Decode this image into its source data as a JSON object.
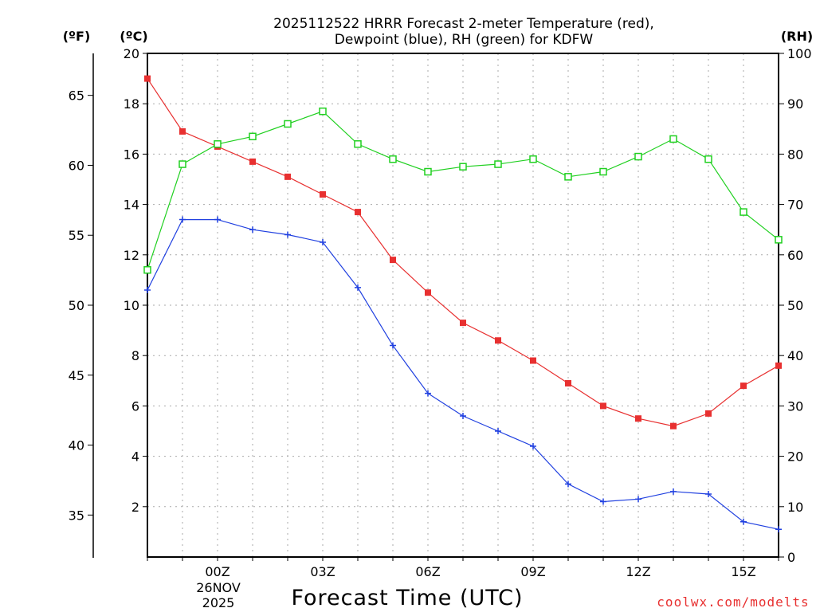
{
  "chart_data": {
    "type": "line",
    "title_line1": "2025112522 HRRR Forecast 2-meter Temperature (red),",
    "title_line2": "Dewpoint (blue), RH (green) for KDFW",
    "unit_left_f": "(ºF)",
    "unit_left_c": "(ºC)",
    "unit_right_rh": "(RH)",
    "xlabel": "Forecast Time (UTC)",
    "credit": "coolwx.com/modelts",
    "date_label_day": "26NOV",
    "date_label_year": "2025",
    "x_hours": [
      -2,
      -1,
      0,
      1,
      2,
      3,
      4,
      5,
      6,
      7,
      8,
      9,
      10,
      11,
      12,
      13,
      14,
      15,
      16
    ],
    "xlim": [
      -2,
      16
    ],
    "x_ticks": [
      {
        "hour": 0,
        "label": "00Z"
      },
      {
        "hour": 3,
        "label": "03Z"
      },
      {
        "hour": 6,
        "label": "06Z"
      },
      {
        "hour": 9,
        "label": "09Z"
      },
      {
        "hour": 12,
        "label": "12Z"
      },
      {
        "hour": 15,
        "label": "15Z"
      }
    ],
    "y_celsius": {
      "range": [
        0,
        20
      ],
      "ticks": [
        2,
        4,
        6,
        8,
        10,
        12,
        14,
        16,
        18,
        20
      ],
      "tick_labels": [
        "2",
        "4",
        "6",
        "8",
        "10",
        "12",
        "14",
        "16",
        "18",
        "20"
      ]
    },
    "y_fahrenheit": {
      "ticks": [
        35,
        40,
        45,
        50,
        55,
        60,
        65
      ],
      "tick_labels": [
        "35",
        "40",
        "45",
        "50",
        "55",
        "60",
        "65"
      ]
    },
    "y_rh": {
      "range": [
        0,
        100
      ],
      "ticks": [
        0,
        10,
        20,
        30,
        40,
        50,
        60,
        70,
        80,
        90,
        100
      ],
      "tick_labels": [
        "0",
        "10",
        "20",
        "30",
        "40",
        "50",
        "60",
        "70",
        "80",
        "90",
        "100"
      ]
    },
    "series": [
      {
        "name": "Temperature",
        "axis": "celsius",
        "color": "#e83030",
        "marker": "filled-square",
        "values": [
          19.0,
          16.9,
          16.3,
          15.7,
          15.1,
          14.4,
          13.7,
          11.8,
          10.5,
          9.3,
          8.6,
          7.8,
          6.9,
          6.0,
          5.5,
          5.2,
          5.7,
          6.8,
          7.6
        ]
      },
      {
        "name": "Dewpoint",
        "axis": "celsius",
        "color": "#2040e0",
        "marker": "plus",
        "values": [
          10.6,
          13.4,
          13.4,
          13.0,
          12.8,
          12.5,
          10.7,
          8.4,
          6.5,
          5.6,
          5.0,
          4.4,
          2.9,
          2.2,
          2.3,
          2.6,
          2.5,
          1.4,
          1.1
        ]
      },
      {
        "name": "RH",
        "axis": "rh",
        "color": "#20d020",
        "marker": "open-square",
        "values": [
          57,
          78,
          82,
          83.5,
          86,
          88.5,
          82,
          79,
          76.5,
          77.5,
          78,
          79,
          75.5,
          76.5,
          79.5,
          83,
          79,
          68.5,
          63
        ]
      }
    ]
  }
}
